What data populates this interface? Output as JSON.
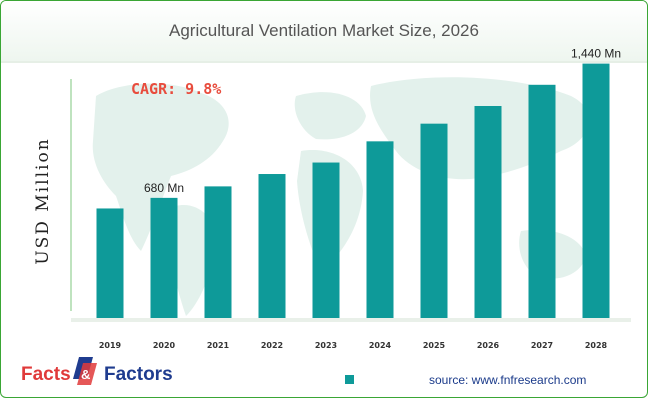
{
  "chart_data": {
    "type": "bar",
    "title": "Agricultural Ventilation Market Size, 2026",
    "ylabel": "USD Million",
    "categories": [
      "2019",
      "2020",
      "2021",
      "2022",
      "2023",
      "2024",
      "2025",
      "2026",
      "2027",
      "2028"
    ],
    "values": [
      620,
      680,
      745,
      815,
      880,
      1000,
      1100,
      1200,
      1320,
      1440
    ],
    "ylim": [
      0,
      1500
    ],
    "data_labels": [
      {
        "index": 1,
        "text": "680 Mn"
      },
      {
        "index": 9,
        "text": "1,440 Mn"
      }
    ],
    "annotation": "CAGR: 9.8%",
    "bar_color": "#0e9a99",
    "grid": false
  },
  "source": "source: www.fnfresearch.com",
  "logo": {
    "left": "Facts",
    "ampersand": "&",
    "right": "Factors"
  },
  "colors": {
    "accent_green": "#3aa635",
    "logo_red": "#e03a3a",
    "logo_blue": "#1f3c8f"
  }
}
